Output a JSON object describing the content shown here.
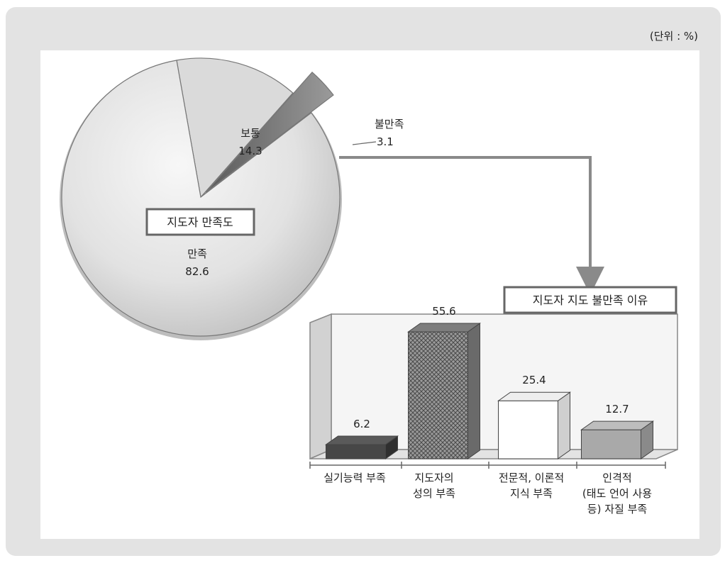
{
  "unit_label": "(단위 : %)",
  "chart_data": [
    {
      "type": "pie",
      "title": "지도자 만족도",
      "slices": [
        {
          "label": "만족",
          "value": 82.6,
          "value_text": "82.6"
        },
        {
          "label": "보통",
          "value": 14.3,
          "value_text": "14.3"
        },
        {
          "label": "불만족",
          "value": 3.1,
          "value_text": "3.1"
        }
      ]
    },
    {
      "type": "bar",
      "title": "지도자 지도 불만족 이유",
      "categories": [
        "실기능력 부족",
        "지도자의 성의 부족",
        "전문적, 이론적 지식 부족",
        "인격적 (태도 언어 사용 등) 자질 부족"
      ],
      "category_lines": [
        [
          "실기능력 부족"
        ],
        [
          "지도자의",
          "성의 부족"
        ],
        [
          "전문적, 이론적",
          "지식 부족"
        ],
        [
          "인격적",
          "(태도 언어 사용",
          "등) 자질 부족"
        ]
      ],
      "values": [
        6.2,
        55.6,
        25.4,
        12.7
      ],
      "value_texts": [
        "6.2",
        "55.6",
        "25.4",
        "12.7"
      ],
      "ylim": [
        0,
        55.6
      ],
      "colors": [
        "#474747",
        "#8a8a8a",
        "#ffffff",
        "#a6a6a6"
      ]
    }
  ]
}
